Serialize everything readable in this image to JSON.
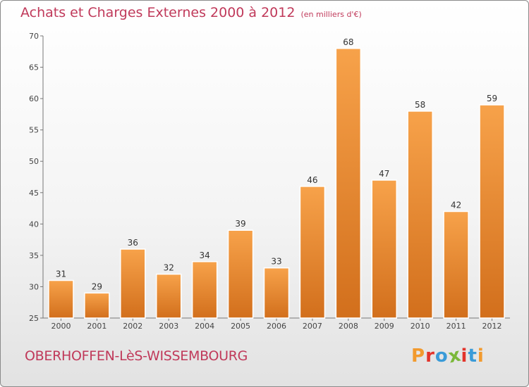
{
  "title": "Achats et Charges Externes 2000 à 2012",
  "unit": "(en milliers d'€)",
  "city": "OBERHOFFEN-LèS-WISSEMBOURG",
  "logo": {
    "letters": [
      "P",
      "r",
      "o",
      "x",
      "i",
      "t",
      "i"
    ],
    "colors": [
      "#f29a2e",
      "#e2332b",
      "#3a9bd8",
      "#7bb83a",
      "#e2332b",
      "#3a9bd8",
      "#f29a2e"
    ]
  },
  "colors": {
    "bar": "#f0923a",
    "bar_dark": "#d4701e",
    "title": "#c0395a"
  },
  "chart_data": {
    "type": "bar",
    "categories": [
      "2000",
      "2001",
      "2002",
      "2003",
      "2004",
      "2005",
      "2006",
      "2007",
      "2008",
      "2009",
      "2010",
      "2011",
      "2012"
    ],
    "values": [
      31,
      29,
      36,
      32,
      34,
      39,
      33,
      46,
      68,
      47,
      58,
      42,
      59
    ],
    "ylim": [
      25,
      70
    ],
    "yticks": [
      25,
      30,
      35,
      40,
      45,
      50,
      55,
      60,
      65,
      70
    ],
    "grid": false
  }
}
